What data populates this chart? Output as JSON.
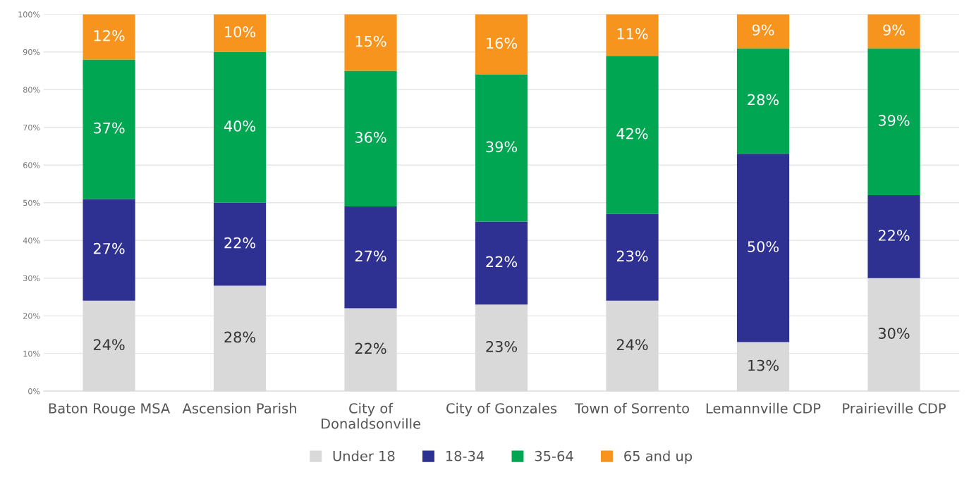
{
  "chart_data": {
    "type": "bar",
    "stacked": true,
    "categories": [
      "Baton Rouge MSA",
      "Ascension Parish",
      "City of\nDonaldsonville",
      "City of Gonzales",
      "Town of Sorrento",
      "Lemannville CDP",
      "Prairieville CDP"
    ],
    "series": [
      {
        "name": "Under 18",
        "color": "#d9d9d9",
        "values": [
          24,
          28,
          22,
          23,
          24,
          13,
          30
        ],
        "value_labels": [
          "24%",
          "28%",
          "22%",
          "23%",
          "24%",
          "13%",
          "30%"
        ]
      },
      {
        "name": "18-34",
        "color": "#2e3192",
        "values": [
          27,
          22,
          27,
          22,
          23,
          50,
          22
        ],
        "value_labels": [
          "27%",
          "22%",
          "27%",
          "22%",
          "23%",
          "50%",
          "22%"
        ]
      },
      {
        "name": "35-64",
        "color": "#00a651",
        "values": [
          37,
          40,
          36,
          39,
          42,
          28,
          39
        ],
        "value_labels": [
          "37%",
          "40%",
          "36%",
          "39%",
          "42%",
          "28%",
          "39%"
        ]
      },
      {
        "name": "65 and up",
        "color": "#f7941d",
        "values": [
          12,
          10,
          15,
          16,
          11,
          9,
          9
        ],
        "value_labels": [
          "12%",
          "10%",
          "15%",
          "16%",
          "11%",
          "9%",
          "9%"
        ]
      }
    ],
    "ylim": [
      0,
      100
    ],
    "yticks": [
      {
        "value": 0,
        "label": "0%"
      },
      {
        "value": 10,
        "label": "10%"
      },
      {
        "value": 20,
        "label": "20%"
      },
      {
        "value": 30,
        "label": "30%"
      },
      {
        "value": 40,
        "label": "40%"
      },
      {
        "value": 50,
        "label": "50%"
      },
      {
        "value": 60,
        "label": "60%"
      },
      {
        "value": 70,
        "label": "70%"
      },
      {
        "value": 80,
        "label": "80%"
      },
      {
        "value": 90,
        "label": "90%"
      },
      {
        "value": 100,
        "label": "100%"
      }
    ],
    "grid": "y",
    "legend": "bottom"
  }
}
